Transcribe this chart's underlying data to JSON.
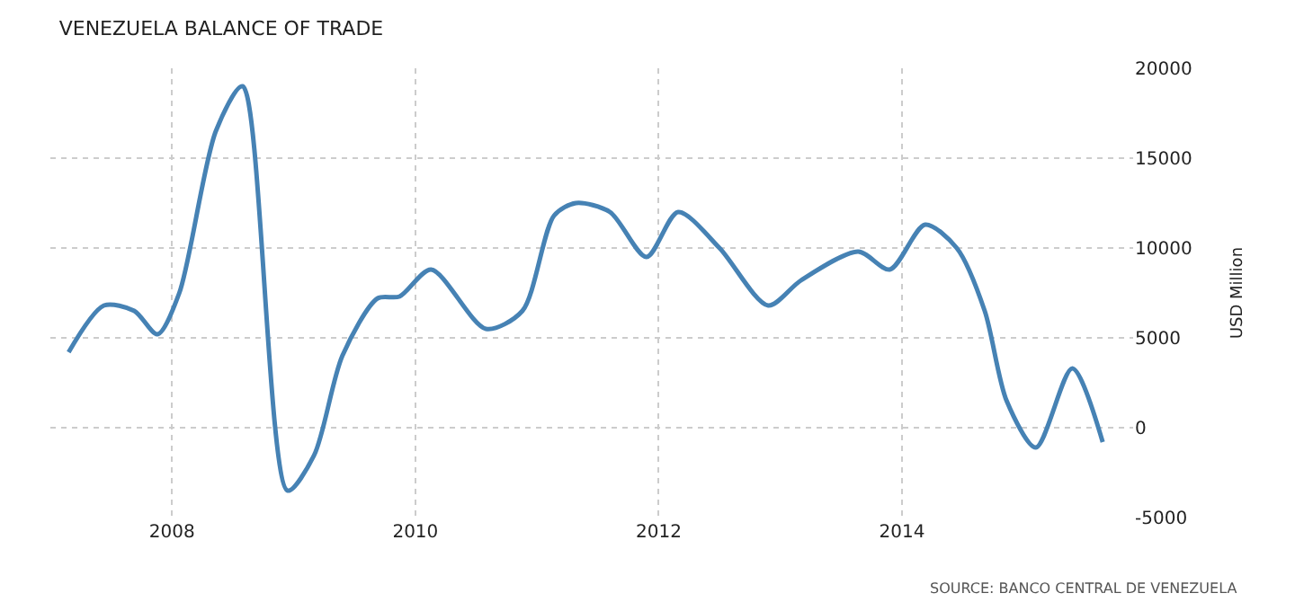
{
  "chart_data": {
    "type": "line",
    "title": "VENEZUELA BALANCE OF TRADE",
    "ylabel": "USD Million",
    "annotations": [
      "SOURCE: BANCO CENTRAL DE VENEZUELA"
    ],
    "x": [
      2007.15,
      2007.44,
      2007.69,
      2007.88,
      2008.06,
      2008.36,
      2008.58,
      2008.95,
      2009.17,
      2009.4,
      2009.69,
      2009.87,
      2010.13,
      2010.58,
      2010.88,
      2011.14,
      2011.32,
      2011.6,
      2011.9,
      2012.16,
      2012.5,
      2012.9,
      2013.17,
      2013.64,
      2013.9,
      2014.19,
      2014.45,
      2014.68,
      2014.86,
      2015.1,
      2015.4,
      2015.65
    ],
    "series": [
      {
        "color": "#4682b4",
        "values": [
          4200,
          6800,
          6500,
          5200,
          7500,
          16500,
          19000,
          -3500,
          -1500,
          4000,
          7200,
          7300,
          8800,
          5500,
          6500,
          11800,
          12500,
          12000,
          9500,
          12000,
          10000,
          6800,
          8200,
          9800,
          8800,
          11300,
          10000,
          6500,
          1500,
          -1100,
          3300,
          -800
        ]
      }
    ],
    "xlim": [
      2007,
      2015.9
    ],
    "xticks": [
      2008,
      2010,
      2012,
      2014
    ],
    "ylim": [
      -5000,
      20000
    ],
    "yticks": [
      -5000,
      0,
      5000,
      10000,
      15000,
      20000
    ],
    "grid": true,
    "legend": false,
    "marker": "none",
    "line_style": "solid"
  }
}
